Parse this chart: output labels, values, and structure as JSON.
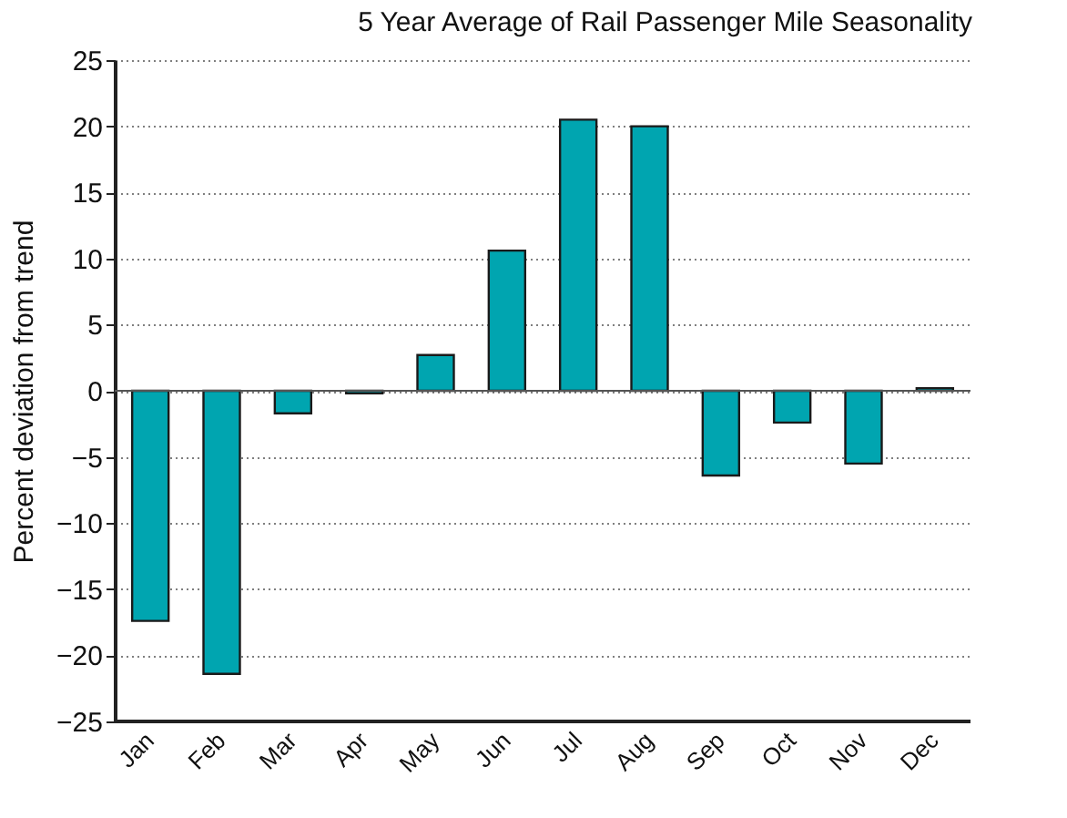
{
  "chart_data": {
    "type": "bar",
    "title": "5 Year Average of Rail Passenger Mile Seasonality",
    "ylabel": "Percent deviation from trend",
    "categories": [
      "Jan",
      "Feb",
      "Mar",
      "Apr",
      "May",
      "Jun",
      "Jul",
      "Aug",
      "Sep",
      "Oct",
      "Nov",
      "Dec"
    ],
    "values": [
      -17.4,
      -21.4,
      -1.7,
      -0.2,
      2.7,
      10.6,
      20.5,
      20.0,
      -6.4,
      -2.4,
      -5.5,
      0.2
    ],
    "color": "#00a5b0",
    "ylim": [
      -25,
      25
    ],
    "yticks": [
      -25,
      -20,
      -15,
      -10,
      -5,
      0,
      5,
      10,
      15,
      20,
      25
    ],
    "grid": "y"
  }
}
